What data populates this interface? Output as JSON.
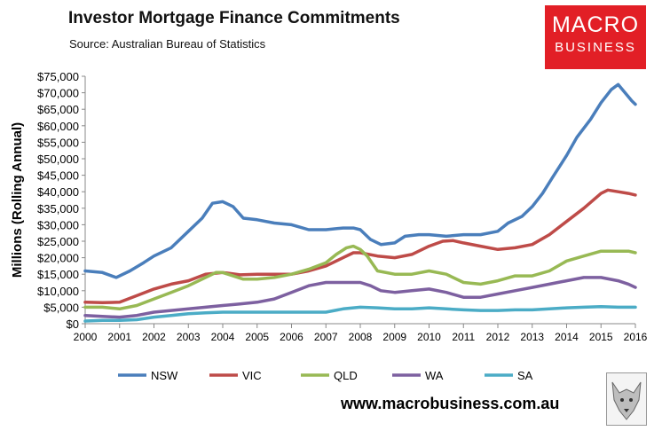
{
  "header": {
    "title": "Investor Mortgage Finance Commitments",
    "subtitle": "Source: Australian Bureau of Statistics"
  },
  "logo": {
    "line1": "MACRO",
    "line2": "BUSINESS"
  },
  "footer": {
    "website": "www.macrobusiness.com.au",
    "mascot": "wolf-logo"
  },
  "chart_data": {
    "type": "line",
    "title": "Investor Mortgage Finance Commitments",
    "subtitle": "Source: Australian Bureau of Statistics",
    "xlabel": "",
    "ylabel": "Millions (Rolling Annual)",
    "xlim": [
      2000,
      2016
    ],
    "ylim": [
      0,
      75000
    ],
    "x_ticks": [
      "2000",
      "2001",
      "2002",
      "2003",
      "2004",
      "2005",
      "2006",
      "2007",
      "2008",
      "2009",
      "2010",
      "2011",
      "2012",
      "2013",
      "2014",
      "2015",
      "2016"
    ],
    "y_ticks": [
      "$0",
      "$5,000",
      "$10,000",
      "$15,000",
      "$20,000",
      "$25,000",
      "$30,000",
      "$35,000",
      "$40,000",
      "$45,000",
      "$50,000",
      "$55,000",
      "$60,000",
      "$65,000",
      "$70,000",
      "$75,000"
    ],
    "grid": false,
    "legend_position": "bottom",
    "series": [
      {
        "name": "NSW",
        "color": "#4a7ebb",
        "points": [
          [
            2000,
            16000
          ],
          [
            2000.5,
            15500
          ],
          [
            2000.9,
            14000
          ],
          [
            2001.3,
            16000
          ],
          [
            2001.7,
            18500
          ],
          [
            2002,
            20500
          ],
          [
            2002.5,
            23000
          ],
          [
            2003,
            28000
          ],
          [
            2003.4,
            32000
          ],
          [
            2003.7,
            36500
          ],
          [
            2004,
            37000
          ],
          [
            2004.3,
            35500
          ],
          [
            2004.6,
            32000
          ],
          [
            2005,
            31500
          ],
          [
            2005.5,
            30500
          ],
          [
            2006,
            30000
          ],
          [
            2006.5,
            28500
          ],
          [
            2007,
            28500
          ],
          [
            2007.5,
            29000
          ],
          [
            2007.8,
            29000
          ],
          [
            2008,
            28500
          ],
          [
            2008.3,
            25500
          ],
          [
            2008.6,
            24000
          ],
          [
            2009,
            24500
          ],
          [
            2009.3,
            26500
          ],
          [
            2009.7,
            27000
          ],
          [
            2010,
            27000
          ],
          [
            2010.5,
            26500
          ],
          [
            2011,
            27000
          ],
          [
            2011.5,
            27000
          ],
          [
            2012,
            28000
          ],
          [
            2012.3,
            30500
          ],
          [
            2012.7,
            32500
          ],
          [
            2013,
            35500
          ],
          [
            2013.3,
            39500
          ],
          [
            2013.6,
            44500
          ],
          [
            2014,
            51000
          ],
          [
            2014.3,
            56500
          ],
          [
            2014.7,
            62000
          ],
          [
            2015,
            67000
          ],
          [
            2015.3,
            71000
          ],
          [
            2015.5,
            72500
          ],
          [
            2015.7,
            70000
          ],
          [
            2015.9,
            67500
          ],
          [
            2016,
            66500
          ]
        ]
      },
      {
        "name": "VIC",
        "color": "#be4b48",
        "points": [
          [
            2000,
            6500
          ],
          [
            2000.5,
            6400
          ],
          [
            2001,
            6500
          ],
          [
            2001.5,
            8500
          ],
          [
            2002,
            10500
          ],
          [
            2002.5,
            12000
          ],
          [
            2003,
            13000
          ],
          [
            2003.5,
            15000
          ],
          [
            2004,
            15500
          ],
          [
            2004.5,
            14800
          ],
          [
            2005,
            15000
          ],
          [
            2005.5,
            15000
          ],
          [
            2006,
            15000
          ],
          [
            2006.5,
            16000
          ],
          [
            2007,
            17500
          ],
          [
            2007.5,
            20000
          ],
          [
            2007.8,
            21500
          ],
          [
            2008,
            21500
          ],
          [
            2008.5,
            20500
          ],
          [
            2009,
            20000
          ],
          [
            2009.5,
            21000
          ],
          [
            2010,
            23500
          ],
          [
            2010.4,
            25000
          ],
          [
            2010.7,
            25200
          ],
          [
            2011,
            24500
          ],
          [
            2011.5,
            23500
          ],
          [
            2012,
            22500
          ],
          [
            2012.5,
            23000
          ],
          [
            2013,
            24000
          ],
          [
            2013.5,
            27000
          ],
          [
            2014,
            31000
          ],
          [
            2014.5,
            35000
          ],
          [
            2015,
            39500
          ],
          [
            2015.2,
            40500
          ],
          [
            2015.5,
            40000
          ],
          [
            2015.8,
            39500
          ],
          [
            2016,
            39000
          ]
        ]
      },
      {
        "name": "QLD",
        "color": "#98b954",
        "points": [
          [
            2000,
            5000
          ],
          [
            2000.5,
            5000
          ],
          [
            2001,
            4500
          ],
          [
            2001.5,
            5500
          ],
          [
            2002,
            7500
          ],
          [
            2002.5,
            9500
          ],
          [
            2003,
            11500
          ],
          [
            2003.5,
            14000
          ],
          [
            2003.8,
            15500
          ],
          [
            2004,
            15500
          ],
          [
            2004.3,
            14500
          ],
          [
            2004.6,
            13500
          ],
          [
            2005,
            13500
          ],
          [
            2005.5,
            14000
          ],
          [
            2006,
            15000
          ],
          [
            2006.5,
            16500
          ],
          [
            2007,
            18500
          ],
          [
            2007.3,
            21000
          ],
          [
            2007.6,
            23000
          ],
          [
            2007.8,
            23500
          ],
          [
            2008,
            22500
          ],
          [
            2008.2,
            20500
          ],
          [
            2008.5,
            16000
          ],
          [
            2009,
            15000
          ],
          [
            2009.5,
            15000
          ],
          [
            2010,
            16000
          ],
          [
            2010.5,
            15000
          ],
          [
            2011,
            12500
          ],
          [
            2011.5,
            12000
          ],
          [
            2012,
            13000
          ],
          [
            2012.5,
            14500
          ],
          [
            2013,
            14500
          ],
          [
            2013.5,
            16000
          ],
          [
            2014,
            19000
          ],
          [
            2014.5,
            20500
          ],
          [
            2015,
            22000
          ],
          [
            2015.5,
            22000
          ],
          [
            2015.8,
            22000
          ],
          [
            2016,
            21500
          ]
        ]
      },
      {
        "name": "WA",
        "color": "#7d60a0",
        "points": [
          [
            2000,
            2500
          ],
          [
            2000.5,
            2200
          ],
          [
            2001,
            2000
          ],
          [
            2001.5,
            2500
          ],
          [
            2002,
            3500
          ],
          [
            2002.5,
            4000
          ],
          [
            2003,
            4500
          ],
          [
            2003.5,
            5000
          ],
          [
            2004,
            5500
          ],
          [
            2004.5,
            6000
          ],
          [
            2005,
            6500
          ],
          [
            2005.5,
            7500
          ],
          [
            2006,
            9500
          ],
          [
            2006.5,
            11500
          ],
          [
            2007,
            12500
          ],
          [
            2007.5,
            12500
          ],
          [
            2008,
            12500
          ],
          [
            2008.3,
            11500
          ],
          [
            2008.6,
            10000
          ],
          [
            2009,
            9500
          ],
          [
            2009.5,
            10000
          ],
          [
            2010,
            10500
          ],
          [
            2010.5,
            9500
          ],
          [
            2011,
            8000
          ],
          [
            2011.5,
            8000
          ],
          [
            2012,
            9000
          ],
          [
            2012.5,
            10000
          ],
          [
            2013,
            11000
          ],
          [
            2013.5,
            12000
          ],
          [
            2014,
            13000
          ],
          [
            2014.5,
            14000
          ],
          [
            2015,
            14000
          ],
          [
            2015.5,
            13000
          ],
          [
            2015.8,
            12000
          ],
          [
            2016,
            11000
          ]
        ]
      },
      {
        "name": "SA",
        "color": "#4bacc6",
        "points": [
          [
            2000,
            800
          ],
          [
            2000.5,
            1000
          ],
          [
            2001,
            1000
          ],
          [
            2001.5,
            1200
          ],
          [
            2002,
            2000
          ],
          [
            2002.5,
            2500
          ],
          [
            2003,
            3000
          ],
          [
            2003.5,
            3300
          ],
          [
            2004,
            3500
          ],
          [
            2004.5,
            3500
          ],
          [
            2005,
            3500
          ],
          [
            2005.5,
            3500
          ],
          [
            2006,
            3500
          ],
          [
            2006.5,
            3500
          ],
          [
            2007,
            3500
          ],
          [
            2007.5,
            4500
          ],
          [
            2008,
            5000
          ],
          [
            2008.5,
            4800
          ],
          [
            2009,
            4500
          ],
          [
            2009.5,
            4500
          ],
          [
            2010,
            4800
          ],
          [
            2010.5,
            4500
          ],
          [
            2011,
            4200
          ],
          [
            2011.5,
            4000
          ],
          [
            2012,
            4000
          ],
          [
            2012.5,
            4200
          ],
          [
            2013,
            4200
          ],
          [
            2013.5,
            4500
          ],
          [
            2014,
            4800
          ],
          [
            2014.5,
            5000
          ],
          [
            2015,
            5200
          ],
          [
            2015.5,
            5000
          ],
          [
            2016,
            5000
          ]
        ]
      }
    ]
  }
}
